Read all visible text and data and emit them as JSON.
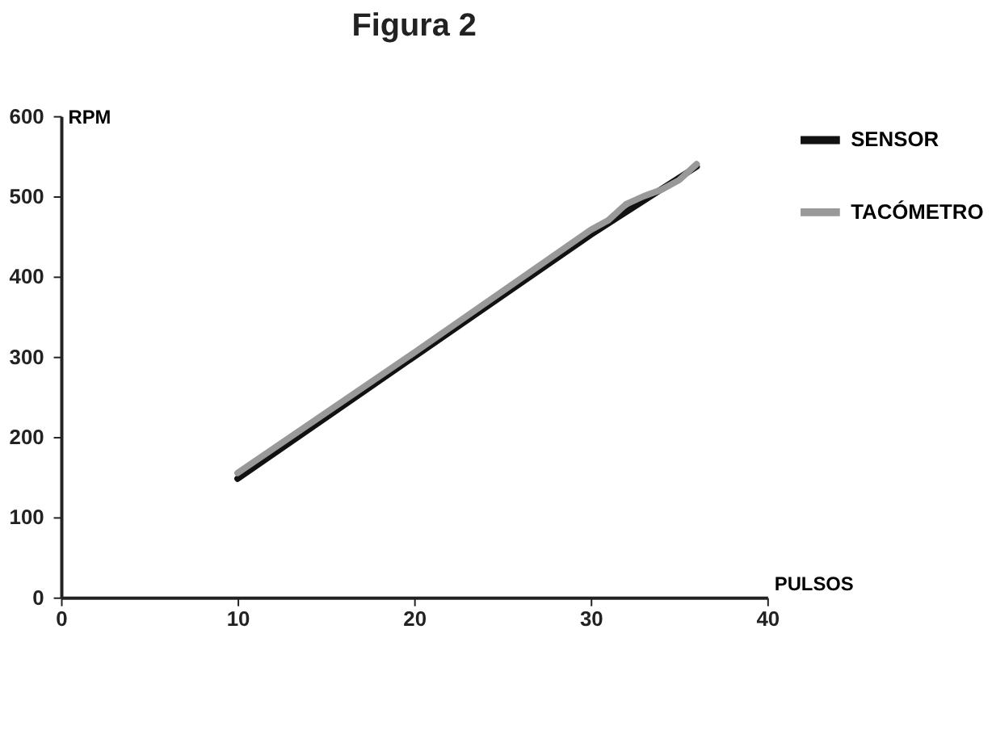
{
  "chart_data": {
    "type": "line",
    "title": "Figura 2",
    "xlabel": "PULSOS",
    "ylabel": "RPM",
    "xlim": [
      0,
      40
    ],
    "xticks": [
      0,
      10,
      20,
      30,
      40
    ],
    "ylim": [
      0,
      600
    ],
    "yticks": [
      0,
      100,
      200,
      300,
      400,
      500,
      600
    ],
    "grid": false,
    "legend": "right",
    "marker": "none",
    "line_style": "solid",
    "series": [
      {
        "name": "SENSOR",
        "color": "#111111",
        "x": [
          10,
          20,
          30,
          36
        ],
        "values": [
          148,
          300,
          452,
          537
        ]
      },
      {
        "name": "TACÓMETRO",
        "color": "#999999",
        "x": [
          10,
          20,
          30,
          31,
          32,
          33,
          34,
          35,
          36
        ],
        "values": [
          155,
          305,
          458,
          470,
          490,
          500,
          508,
          520,
          540
        ]
      }
    ]
  }
}
